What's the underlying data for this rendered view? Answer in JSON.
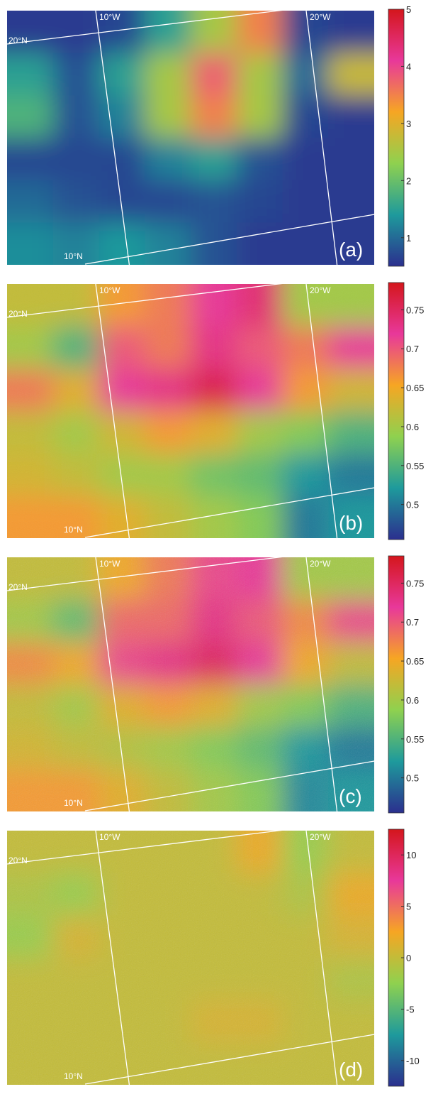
{
  "chart_data": [
    {
      "type": "heatmap",
      "panel_label": "(a)",
      "map_labels": [
        "10°W",
        "20°W",
        "20°N",
        "10°N"
      ],
      "colormap": [
        "#2b2f8e",
        "#1e9a9c",
        "#8fd14f",
        "#f6a623",
        "#e8389a",
        "#d4161c"
      ],
      "zlim": [
        0.5,
        5
      ],
      "zticks": [
        1,
        2,
        3,
        4,
        5
      ],
      "z": [
        [
          0.6,
          0.6,
          0.7,
          1.5,
          2.5,
          3.5,
          0.7,
          0.6
        ],
        [
          1.5,
          0.8,
          1.5,
          2.5,
          3.8,
          2.5,
          1,
          2.8
        ],
        [
          1.8,
          0.8,
          1.2,
          2.5,
          3.5,
          2.5,
          0.7,
          0.6
        ],
        [
          0.7,
          0.7,
          0.7,
          1.2,
          1.5,
          0.8,
          0.6,
          0.6
        ],
        [
          1,
          0.8,
          0.7,
          0.7,
          0.8,
          0.7,
          0.6,
          0.6
        ],
        [
          1.3,
          1.2,
          1.4,
          1.2,
          0.8,
          0.6,
          0.6,
          0.6
        ]
      ]
    },
    {
      "type": "heatmap",
      "panel_label": "(b)",
      "map_labels": [
        "10°W",
        "20°W",
        "20°N",
        "10°N"
      ],
      "colormap": [
        "#2b2f8e",
        "#1e9a9c",
        "#8fd14f",
        "#f6a623",
        "#e8389a",
        "#d4161c"
      ],
      "zlim": [
        0.455,
        0.785
      ],
      "zticks": [
        0.5,
        0.55,
        0.6,
        0.65,
        0.7,
        0.75
      ],
      "z": [
        [
          0.62,
          0.62,
          0.66,
          0.68,
          0.72,
          0.74,
          0.6,
          0.6
        ],
        [
          0.6,
          0.55,
          0.7,
          0.68,
          0.73,
          0.7,
          0.68,
          0.72
        ],
        [
          0.68,
          0.64,
          0.72,
          0.73,
          0.76,
          0.72,
          0.66,
          0.63
        ],
        [
          0.62,
          0.6,
          0.63,
          0.66,
          0.64,
          0.6,
          0.58,
          0.55
        ],
        [
          0.63,
          0.62,
          0.6,
          0.6,
          0.57,
          0.56,
          0.52,
          0.5
        ],
        [
          0.66,
          0.66,
          0.64,
          0.62,
          0.6,
          0.58,
          0.5,
          0.52
        ]
      ]
    },
    {
      "type": "heatmap",
      "panel_label": "(c)",
      "map_labels": [
        "10°W",
        "20°W",
        "20°N",
        "10°N"
      ],
      "colormap": [
        "#2b2f8e",
        "#1e9a9c",
        "#8fd14f",
        "#f6a623",
        "#e8389a",
        "#d4161c"
      ],
      "zlim": [
        0.455,
        0.785
      ],
      "zticks": [
        0.5,
        0.55,
        0.6,
        0.65,
        0.7,
        0.75
      ],
      "z": [
        [
          0.62,
          0.62,
          0.65,
          0.68,
          0.71,
          0.72,
          0.6,
          0.6
        ],
        [
          0.6,
          0.56,
          0.69,
          0.69,
          0.73,
          0.7,
          0.67,
          0.71
        ],
        [
          0.67,
          0.65,
          0.71,
          0.73,
          0.75,
          0.72,
          0.65,
          0.62
        ],
        [
          0.62,
          0.6,
          0.64,
          0.66,
          0.64,
          0.6,
          0.58,
          0.55
        ],
        [
          0.63,
          0.62,
          0.61,
          0.6,
          0.58,
          0.56,
          0.52,
          0.5
        ],
        [
          0.66,
          0.66,
          0.64,
          0.62,
          0.6,
          0.58,
          0.51,
          0.52
        ]
      ]
    },
    {
      "type": "heatmap",
      "panel_label": "(d)",
      "map_labels": [
        "10°W",
        "20°W",
        "20°N",
        "10°N"
      ],
      "colormap": [
        "#2b2f8e",
        "#1e9a9c",
        "#8fd14f",
        "#f6a623",
        "#e8389a",
        "#d4161c"
      ],
      "zlim": [
        -12.5,
        12.5
      ],
      "zticks": [
        -10,
        -5,
        0,
        5,
        10
      ],
      "z": [
        [
          0,
          0,
          0,
          0,
          0,
          2,
          -2,
          0
        ],
        [
          -1,
          -2,
          0,
          0,
          0,
          0,
          -1,
          2
        ],
        [
          -2,
          1,
          0,
          0,
          0,
          0,
          0,
          1
        ],
        [
          0,
          0,
          0,
          0,
          0,
          0,
          0,
          -1
        ],
        [
          0,
          0,
          0,
          0,
          1,
          1,
          0,
          0
        ],
        [
          0,
          0,
          0,
          0,
          0,
          0,
          0,
          0
        ]
      ]
    }
  ]
}
